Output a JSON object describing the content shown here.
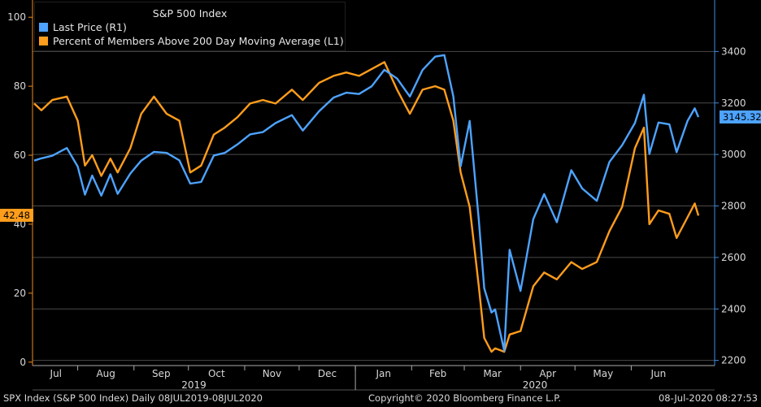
{
  "footer": {
    "left": "SPX Index (S&P 500 Index)  Daily 08JUL2019-08JUL2020",
    "center": "Copyright© 2020 Bloomberg Finance L.P.",
    "right": "08-Jul-2020 08:27:53"
  },
  "chart_data": {
    "type": "line",
    "title": "S&P 500 Index",
    "x_axis": {
      "months": [
        "Jul",
        "Aug",
        "Sep",
        "Oct",
        "Nov",
        "Dec",
        "Jan",
        "Feb",
        "Mar",
        "Apr",
        "May",
        "Jun"
      ],
      "years": [
        "2019",
        "2020"
      ],
      "range": [
        "2019-07-08",
        "2020-07-08"
      ]
    },
    "left_axis": {
      "ticks": [
        0,
        20,
        40,
        60,
        80,
        100
      ],
      "range": [
        -1,
        105
      ]
    },
    "right_axis": {
      "ticks": [
        2200,
        2400,
        2600,
        2800,
        3000,
        3200,
        3400
      ],
      "range": [
        2180,
        3600
      ]
    },
    "grid": true,
    "legend_position": "top-left",
    "series": [
      {
        "name": "Last Price  (R1)",
        "axis": "right",
        "color": "#4da3ff",
        "last_value_label": "3145.32",
        "points": [
          [
            "2019-07-08",
            2976
          ],
          [
            "2019-07-12",
            2985
          ],
          [
            "2019-07-18",
            2995
          ],
          [
            "2019-07-26",
            3025
          ],
          [
            "2019-08-01",
            2953
          ],
          [
            "2019-08-05",
            2844
          ],
          [
            "2019-08-09",
            2918
          ],
          [
            "2019-08-14",
            2840
          ],
          [
            "2019-08-19",
            2923
          ],
          [
            "2019-08-23",
            2847
          ],
          [
            "2019-08-30",
            2926
          ],
          [
            "2019-09-05",
            2976
          ],
          [
            "2019-09-12",
            3010
          ],
          [
            "2019-09-19",
            3006
          ],
          [
            "2019-09-26",
            2977
          ],
          [
            "2019-10-02",
            2887
          ],
          [
            "2019-10-08",
            2893
          ],
          [
            "2019-10-15",
            2996
          ],
          [
            "2019-10-21",
            3006
          ],
          [
            "2019-10-28",
            3039
          ],
          [
            "2019-11-04",
            3078
          ],
          [
            "2019-11-11",
            3087
          ],
          [
            "2019-11-18",
            3122
          ],
          [
            "2019-11-27",
            3153
          ],
          [
            "2019-12-03",
            3093
          ],
          [
            "2019-12-12",
            3168
          ],
          [
            "2019-12-20",
            3221
          ],
          [
            "2019-12-27",
            3240
          ],
          [
            "2020-01-03",
            3235
          ],
          [
            "2020-01-10",
            3265
          ],
          [
            "2020-01-17",
            3329
          ],
          [
            "2020-01-24",
            3295
          ],
          [
            "2020-01-31",
            3225
          ],
          [
            "2020-02-07",
            3328
          ],
          [
            "2020-02-14",
            3380
          ],
          [
            "2020-02-19",
            3386
          ],
          [
            "2020-02-24",
            3225
          ],
          [
            "2020-02-28",
            2954
          ],
          [
            "2020-03-04",
            3130
          ],
          [
            "2020-03-09",
            2746
          ],
          [
            "2020-03-12",
            2480
          ],
          [
            "2020-03-16",
            2386
          ],
          [
            "2020-03-18",
            2398
          ],
          [
            "2020-03-23",
            2237
          ],
          [
            "2020-03-26",
            2630
          ],
          [
            "2020-04-01",
            2470
          ],
          [
            "2020-04-08",
            2749
          ],
          [
            "2020-04-14",
            2846
          ],
          [
            "2020-04-21",
            2737
          ],
          [
            "2020-04-29",
            2939
          ],
          [
            "2020-05-05",
            2868
          ],
          [
            "2020-05-13",
            2820
          ],
          [
            "2020-05-20",
            2971
          ],
          [
            "2020-05-27",
            3036
          ],
          [
            "2020-06-03",
            3122
          ],
          [
            "2020-06-08",
            3232
          ],
          [
            "2020-06-11",
            3002
          ],
          [
            "2020-06-16",
            3124
          ],
          [
            "2020-06-22",
            3117
          ],
          [
            "2020-06-26",
            3009
          ],
          [
            "2020-07-02",
            3130
          ],
          [
            "2020-07-06",
            3179
          ],
          [
            "2020-07-08",
            3145.32
          ]
        ]
      },
      {
        "name": "Percent of Members Above 200 Day Moving Average  (L1)",
        "axis": "left",
        "color": "#ff9d1c",
        "last_value_label": "42.48",
        "points": [
          [
            "2019-07-08",
            75
          ],
          [
            "2019-07-12",
            73
          ],
          [
            "2019-07-18",
            76
          ],
          [
            "2019-07-26",
            77
          ],
          [
            "2019-08-01",
            70
          ],
          [
            "2019-08-05",
            57
          ],
          [
            "2019-08-09",
            60
          ],
          [
            "2019-08-14",
            54
          ],
          [
            "2019-08-19",
            59
          ],
          [
            "2019-08-23",
            55
          ],
          [
            "2019-08-30",
            62
          ],
          [
            "2019-09-05",
            72
          ],
          [
            "2019-09-12",
            77
          ],
          [
            "2019-09-19",
            72
          ],
          [
            "2019-09-26",
            70
          ],
          [
            "2019-10-02",
            55
          ],
          [
            "2019-10-08",
            57
          ],
          [
            "2019-10-15",
            66
          ],
          [
            "2019-10-21",
            68
          ],
          [
            "2019-10-28",
            71
          ],
          [
            "2019-11-04",
            75
          ],
          [
            "2019-11-11",
            76
          ],
          [
            "2019-11-18",
            75
          ],
          [
            "2019-11-27",
            79
          ],
          [
            "2019-12-03",
            76
          ],
          [
            "2019-12-12",
            81
          ],
          [
            "2019-12-20",
            83
          ],
          [
            "2019-12-27",
            84
          ],
          [
            "2020-01-03",
            83
          ],
          [
            "2020-01-10",
            85
          ],
          [
            "2020-01-17",
            87
          ],
          [
            "2020-01-24",
            79
          ],
          [
            "2020-01-31",
            72
          ],
          [
            "2020-02-07",
            79
          ],
          [
            "2020-02-14",
            80
          ],
          [
            "2020-02-19",
            79
          ],
          [
            "2020-02-24",
            70
          ],
          [
            "2020-02-28",
            55
          ],
          [
            "2020-03-04",
            45
          ],
          [
            "2020-03-09",
            22
          ],
          [
            "2020-03-12",
            7
          ],
          [
            "2020-03-16",
            3
          ],
          [
            "2020-03-18",
            4
          ],
          [
            "2020-03-23",
            3
          ],
          [
            "2020-03-26",
            8
          ],
          [
            "2020-04-01",
            9
          ],
          [
            "2020-04-08",
            22
          ],
          [
            "2020-04-14",
            26
          ],
          [
            "2020-04-21",
            24
          ],
          [
            "2020-04-29",
            29
          ],
          [
            "2020-05-05",
            27
          ],
          [
            "2020-05-13",
            29
          ],
          [
            "2020-05-20",
            38
          ],
          [
            "2020-05-27",
            45
          ],
          [
            "2020-06-03",
            62
          ],
          [
            "2020-06-08",
            68
          ],
          [
            "2020-06-11",
            40
          ],
          [
            "2020-06-16",
            44
          ],
          [
            "2020-06-22",
            43
          ],
          [
            "2020-06-26",
            36
          ],
          [
            "2020-07-02",
            42
          ],
          [
            "2020-07-06",
            46
          ],
          [
            "2020-07-08",
            42.48
          ]
        ]
      }
    ]
  }
}
